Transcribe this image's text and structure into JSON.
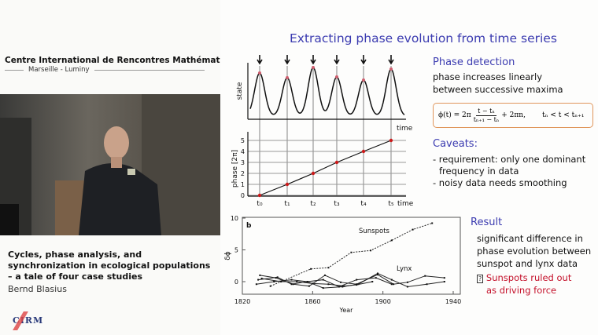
{
  "header": {
    "organization": "Centre International de Rencontres Mathématiques",
    "location": "Marseille - Luminy"
  },
  "talk": {
    "title": "Cycles, phase analysis, and synchronization in ecological populations – a tale of four case studies",
    "speaker": "Bernd Blasius",
    "logo_text": "CIRM"
  },
  "slide": {
    "title": "Extracting phase evolution from time series",
    "phase_detection": {
      "heading": "Phase detection",
      "text": "phase increases linearly between successive maxima"
    },
    "formula": {
      "lhs": "ϕ(t) = 2π",
      "numerator": "t − tₙ",
      "denominator": "tₙ₊₁ − tₙ",
      "rhs": "+ 2πn,",
      "condition": "tₙ < t < tₙ₊₁"
    },
    "caveats": {
      "heading": "Caveats:",
      "items": [
        "- requirement: only one dominant",
        "frequency in data",
        "- noisy data needs smoothing"
      ]
    },
    "result": {
      "heading": "Result",
      "text": [
        "significant difference in",
        "phase evolution between",
        "sunspot and lynx data"
      ],
      "conclusion_icon": "?",
      "conclusion": [
        "Sunspots ruled out",
        "as driving force"
      ],
      "conclusion_color": "#c4102a"
    },
    "accent_color": "#3b3bb0"
  },
  "chart_data": [
    {
      "type": "line",
      "panel": "state",
      "ylabel": "state",
      "xlabel": "time",
      "markers": "arrows at successive maxima"
    },
    {
      "type": "line",
      "panel": "phase",
      "ylabel": "phase [2π]",
      "xlabel": "time",
      "categories": [
        "t₀",
        "t₁",
        "t₂",
        "t₃",
        "t₄",
        "t₅"
      ],
      "values": [
        0,
        1,
        2,
        3,
        4,
        5
      ],
      "yticks": [
        "0",
        "1",
        "2",
        "3",
        "4",
        "5"
      ],
      "ylim": [
        0,
        5.5
      ],
      "grid": true,
      "marker_color": "#cc1a1a"
    },
    {
      "type": "line",
      "panel_label": "b",
      "xlabel": "Year",
      "ylabel": "δϕ",
      "xlim": [
        1820,
        1940
      ],
      "ylim": [
        -2,
        10
      ],
      "xticks": [
        "1820",
        "1860",
        "1900",
        "1940"
      ],
      "yticks": [
        "0",
        "5",
        "10"
      ],
      "series": [
        {
          "name": "Sunspots",
          "style": "dashed",
          "x": [
            1836,
            1859,
            1869,
            1882,
            1893,
            1905,
            1917,
            1928
          ],
          "y": [
            -0.7,
            2.0,
            2.2,
            4.6,
            4.9,
            6.5,
            8.2,
            9.2
          ]
        },
        {
          "name": "Lynx",
          "style": "solid",
          "x": [
            1828,
            1838,
            1848,
            1857,
            1866,
            1877,
            1886,
            1897,
            1905,
            1914,
            1925,
            1935
          ],
          "y": [
            -0.4,
            0.0,
            0.3,
            0.0,
            -1.0,
            -0.8,
            -0.4,
            1.3,
            0.3,
            -0.8,
            -0.4,
            0.0
          ]
        },
        {
          "x": [
            1830,
            1839,
            1849,
            1858,
            1867,
            1876,
            1885,
            1897,
            1906,
            1914,
            1924,
            1935
          ],
          "y": [
            1.0,
            0.6,
            -0.4,
            -0.7,
            1.0,
            -0.1,
            -0.4,
            1.1,
            -0.4,
            -0.1,
            0.9,
            0.6
          ]
        },
        {
          "x": [
            1829,
            1840,
            1848,
            1857,
            1866,
            1875,
            1885,
            1896,
            1905
          ],
          "y": [
            0.3,
            0.7,
            -0.4,
            0.0,
            0.3,
            -0.8,
            0.3,
            0.6,
            -0.4
          ]
        },
        {
          "x": [
            1831,
            1842,
            1851,
            1860,
            1869,
            1878,
            1885,
            1894
          ],
          "y": [
            0.5,
            0.0,
            0.0,
            -0.3,
            -0.4,
            -0.7,
            -0.5,
            0.0
          ]
        }
      ]
    }
  ]
}
